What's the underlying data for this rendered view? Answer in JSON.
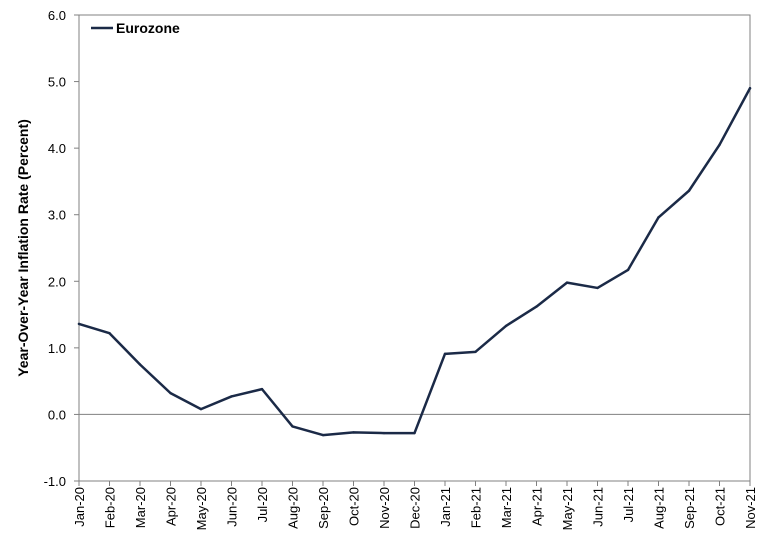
{
  "chart_data": {
    "type": "line",
    "title": "",
    "xlabel": "",
    "ylabel": "Year-Over-Year Inflation Rate (Percent)",
    "ylim": [
      -1.0,
      6.0
    ],
    "yticks": [
      "-1.0",
      "0.0",
      "1.0",
      "2.0",
      "3.0",
      "4.0",
      "5.0",
      "6.0"
    ],
    "grid": false,
    "legend_position": "top-left",
    "categories": [
      "Jan-20",
      "Feb-20",
      "Mar-20",
      "Apr-20",
      "May-20",
      "Jun-20",
      "Jul-20",
      "Aug-20",
      "Sep-20",
      "Oct-20",
      "Nov-20",
      "Dec-20",
      "Jan-21",
      "Feb-21",
      "Mar-21",
      "Apr-21",
      "May-21",
      "Jun-21",
      "Jul-21",
      "Aug-21",
      "Sep-21",
      "Oct-21",
      "Nov-21"
    ],
    "series": [
      {
        "name": "Eurozone",
        "color": "#1b2a47",
        "values": [
          1.36,
          1.22,
          0.75,
          0.32,
          0.08,
          0.27,
          0.38,
          -0.18,
          -0.31,
          -0.27,
          -0.28,
          -0.28,
          0.91,
          0.94,
          1.33,
          1.62,
          1.98,
          1.9,
          2.17,
          2.96,
          3.36,
          4.05,
          4.9
        ]
      }
    ]
  }
}
